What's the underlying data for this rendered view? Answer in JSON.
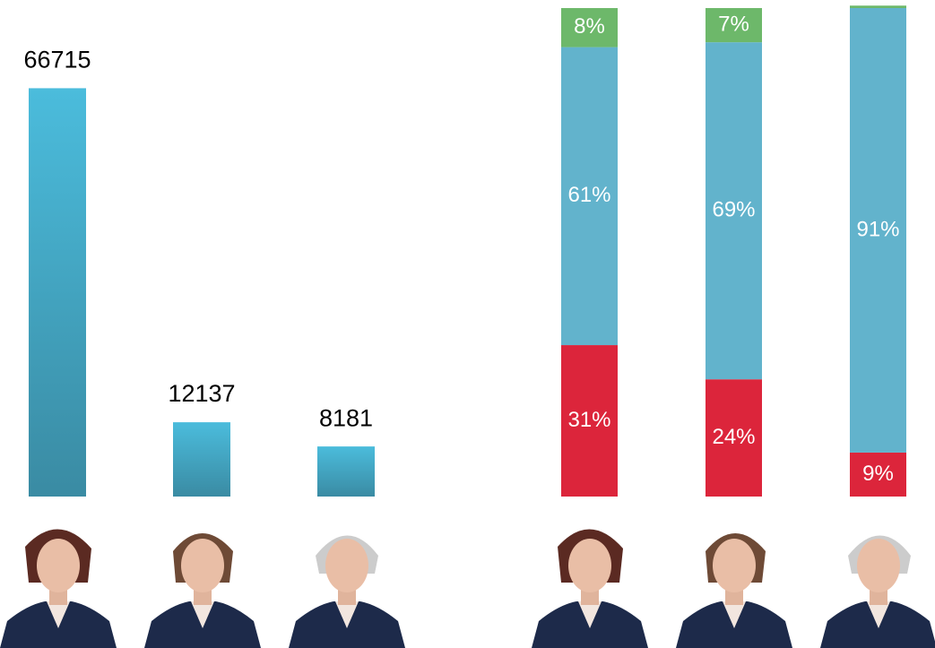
{
  "chart_data": [
    {
      "type": "bar",
      "values": [
        66715,
        12137,
        8181
      ],
      "ylim": [
        0,
        70000
      ],
      "colors": [
        "#4bbcdc",
        "#3a8ba3"
      ]
    },
    {
      "type": "stacked_bar",
      "ylim": [
        0,
        100
      ],
      "series": [
        {
          "color": "#dc253b",
          "values": [
            31,
            24,
            9
          ],
          "value_labels": [
            "31%",
            "24%",
            "9%"
          ]
        },
        {
          "color": "#62b3cc",
          "values": [
            61,
            69,
            91
          ],
          "value_labels": [
            "61%",
            "69%",
            "91%"
          ]
        },
        {
          "color": "#6db86a",
          "values": [
            8,
            7,
            0.5
          ],
          "value_labels": [
            "8%",
            "7%",
            null
          ]
        }
      ]
    }
  ]
}
